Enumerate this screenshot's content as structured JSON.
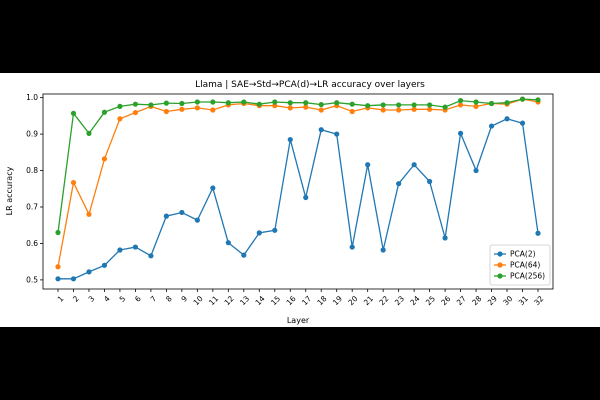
{
  "chart_data": {
    "type": "line",
    "title": "Llama | SAE→Std→PCA(d)→LR accuracy over layers",
    "xlabel": "Layer",
    "ylabel": "LR accuracy",
    "ylim": [
      0.475,
      1.01
    ],
    "yticks": [
      "0.5",
      "0.6",
      "0.7",
      "0.8",
      "0.9",
      "1.0"
    ],
    "categories": [
      "1",
      "2",
      "3",
      "4",
      "5",
      "6",
      "7",
      "8",
      "9",
      "10",
      "11",
      "12",
      "13",
      "14",
      "15",
      "16",
      "17",
      "18",
      "19",
      "20",
      "21",
      "22",
      "23",
      "24",
      "25",
      "26",
      "27",
      "28",
      "29",
      "30",
      "31",
      "32"
    ],
    "legend_position": "lower-right",
    "series": [
      {
        "name": "PCA(2)",
        "color": "#1f77b4",
        "values": [
          0.503,
          0.503,
          0.522,
          0.54,
          0.582,
          0.59,
          0.566,
          0.675,
          0.685,
          0.664,
          0.752,
          0.602,
          0.568,
          0.629,
          0.636,
          0.885,
          0.726,
          0.912,
          0.9,
          0.59,
          0.816,
          0.582,
          0.764,
          0.816,
          0.77,
          0.615,
          0.902,
          0.8,
          0.922,
          0.942,
          0.93,
          0.628
        ]
      },
      {
        "name": "PCA(64)",
        "color": "#ff7f0e",
        "values": [
          0.536,
          0.767,
          0.68,
          0.832,
          0.942,
          0.959,
          0.976,
          0.962,
          0.968,
          0.972,
          0.966,
          0.98,
          0.984,
          0.978,
          0.978,
          0.972,
          0.974,
          0.966,
          0.978,
          0.962,
          0.972,
          0.966,
          0.966,
          0.968,
          0.968,
          0.966,
          0.98,
          0.976,
          0.984,
          0.982,
          0.996,
          0.988
        ]
      },
      {
        "name": "PCA(256)",
        "color": "#2ca02c",
        "values": [
          0.63,
          0.957,
          0.902,
          0.96,
          0.976,
          0.982,
          0.98,
          0.985,
          0.984,
          0.988,
          0.988,
          0.986,
          0.988,
          0.982,
          0.988,
          0.986,
          0.986,
          0.981,
          0.986,
          0.982,
          0.978,
          0.98,
          0.98,
          0.98,
          0.98,
          0.974,
          0.992,
          0.988,
          0.984,
          0.986,
          0.996,
          0.994
        ]
      }
    ]
  }
}
